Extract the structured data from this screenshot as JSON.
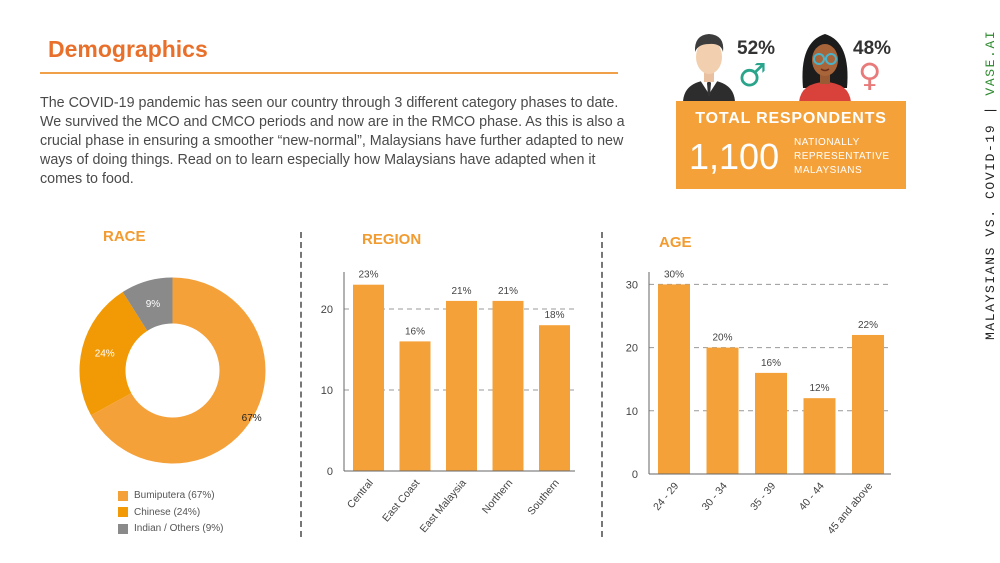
{
  "header": {
    "title": "Demographics",
    "intro": "The COVID-19 pandemic has seen our country through 3 different category phases to date. We survived the MCO and CMCO periods and now are in the RMCO phase. As this is also a crucial phase in ensuring a smoother “new-normal”, Malaysians have further adapted to new ways of doing things.  Read on to learn especially how Malaysians have adapted when it comes to food."
  },
  "side_label": {
    "text": "MALAYSIANS VS. COVID-19 | ",
    "brand": "VASE.AI"
  },
  "gender": {
    "male": {
      "pct": "52%",
      "symbol": "♂"
    },
    "female": {
      "pct": "48%",
      "symbol": "♀"
    }
  },
  "respondents": {
    "title": "TOTAL RESPONDENTS",
    "count": "1,100",
    "description": [
      "NATIONALLY",
      "REPRESENTATIVE",
      "MALAYSIANS"
    ]
  },
  "colors": {
    "orange": "#f5a13a",
    "dark_orange": "#f29a05",
    "gray": "#8a8a8a",
    "title_orange": "#e9702a",
    "green": "#2e8b2e",
    "teal": "#2aa58c",
    "pink": "#e97a7a"
  },
  "chart_data": [
    {
      "type": "pie",
      "title": "RACE",
      "donut": true,
      "categories": [
        "Bumiputera",
        "Chinese",
        "Indian / Others"
      ],
      "values": [
        67,
        24,
        9
      ],
      "labels": [
        "67%",
        "24%",
        "9%"
      ],
      "legend": [
        "Bumiputera (67%)",
        "Chinese (24%)",
        "Indian / Others (9%)"
      ],
      "legend_position": "bottom",
      "colors": [
        "#f5a13a",
        "#f29a05",
        "#8a8a8a"
      ]
    },
    {
      "type": "bar",
      "title": "REGION",
      "categories": [
        "Central",
        "East Coast",
        "East Malaysia",
        "Northern",
        "Southern"
      ],
      "values": [
        23,
        16,
        21,
        21,
        18
      ],
      "labels": [
        "23%",
        "16%",
        "21%",
        "21%",
        "18%"
      ],
      "yticks": [
        0,
        10,
        20
      ],
      "ylim": [
        0,
        25
      ],
      "gridlines": [
        10,
        20
      ]
    },
    {
      "type": "bar",
      "title": "AGE",
      "categories": [
        "24 - 29",
        "30 - 34",
        "35 - 39",
        "40 - 44",
        "45 and above"
      ],
      "values": [
        30,
        20,
        16,
        12,
        22
      ],
      "labels": [
        "30%",
        "20%",
        "16%",
        "12%",
        "22%"
      ],
      "yticks": [
        0,
        10,
        20,
        30
      ],
      "ylim": [
        0,
        32
      ],
      "gridlines": [
        10,
        20,
        30
      ]
    }
  ]
}
